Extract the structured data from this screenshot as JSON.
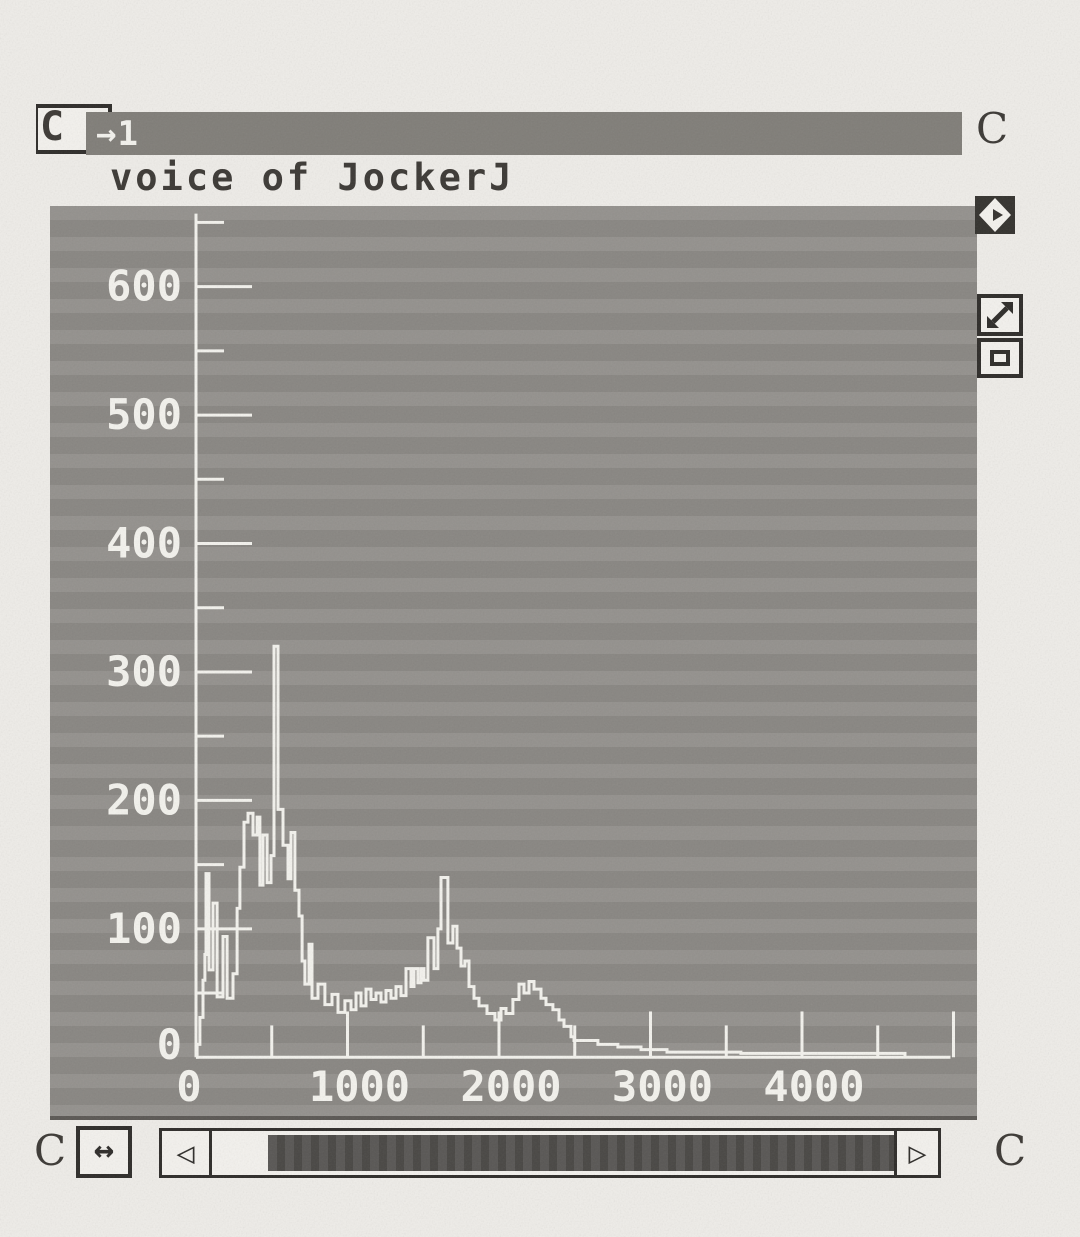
{
  "window": {
    "close_box_label": "C",
    "title_bar_text": "→1",
    "subtitle": "voice of JockerJ",
    "corner_marks": {
      "top_right": "C",
      "bottom_left": "C",
      "bottom_right": "C"
    },
    "icons": {
      "diamond": "window-diamond",
      "resize": "diagonal-resize",
      "restore": "size-box"
    },
    "scrollbar": {
      "h_resize_label": "↔",
      "left_arrow": "◁",
      "right_arrow": "▷"
    }
  },
  "colors": {
    "paper": "#efede9",
    "panel": "#8f8c88",
    "titlebar": "#817e79",
    "dark": "#2e2c29",
    "trace": "#f4f3ee",
    "track": "#4f4d4a",
    "textdark": "#3c3935"
  },
  "chart_data": {
    "type": "line",
    "title": "voice of Jocker",
    "xlabel": "",
    "ylabel": "",
    "xlim": [
      0,
      5100
    ],
    "ylim": [
      0,
      660
    ],
    "x_tick_labels": [
      0,
      1000,
      2000,
      3000,
      4000
    ],
    "x_minor_step": 500,
    "y_tick_labels": [
      0,
      100,
      200,
      300,
      400,
      500,
      600
    ],
    "y_minor_step": 50,
    "grid": false,
    "legend": false,
    "style": "step-after histogram trace, white on gray",
    "series": [
      [
        0,
        0
      ],
      [
        7,
        10
      ],
      [
        26,
        31
      ],
      [
        46,
        60
      ],
      [
        59,
        80
      ],
      [
        66,
        143
      ],
      [
        86,
        68
      ],
      [
        112,
        120
      ],
      [
        139,
        47
      ],
      [
        178,
        94
      ],
      [
        205,
        46
      ],
      [
        244,
        65
      ],
      [
        271,
        116
      ],
      [
        290,
        148
      ],
      [
        317,
        183
      ],
      [
        343,
        190
      ],
      [
        376,
        173
      ],
      [
        403,
        187
      ],
      [
        422,
        134
      ],
      [
        442,
        173
      ],
      [
        469,
        136
      ],
      [
        495,
        157
      ],
      [
        515,
        320
      ],
      [
        541,
        193
      ],
      [
        574,
        165
      ],
      [
        607,
        139
      ],
      [
        627,
        175
      ],
      [
        653,
        130
      ],
      [
        680,
        110
      ],
      [
        700,
        75
      ],
      [
        719,
        57
      ],
      [
        746,
        88
      ],
      [
        766,
        46
      ],
      [
        805,
        57
      ],
      [
        851,
        41
      ],
      [
        898,
        49
      ],
      [
        937,
        35
      ],
      [
        983,
        44
      ],
      [
        1023,
        37
      ],
      [
        1056,
        50
      ],
      [
        1089,
        40
      ],
      [
        1122,
        53
      ],
      [
        1155,
        45
      ],
      [
        1188,
        50
      ],
      [
        1221,
        43
      ],
      [
        1254,
        52
      ],
      [
        1287,
        46
      ],
      [
        1320,
        55
      ],
      [
        1353,
        48
      ],
      [
        1386,
        69
      ],
      [
        1419,
        55
      ],
      [
        1439,
        69
      ],
      [
        1465,
        58
      ],
      [
        1485,
        69
      ],
      [
        1505,
        60
      ],
      [
        1531,
        93
      ],
      [
        1571,
        69
      ],
      [
        1597,
        100
      ],
      [
        1617,
        140
      ],
      [
        1663,
        89
      ],
      [
        1696,
        102
      ],
      [
        1723,
        85
      ],
      [
        1749,
        71
      ],
      [
        1775,
        75
      ],
      [
        1802,
        55
      ],
      [
        1835,
        46
      ],
      [
        1868,
        40
      ],
      [
        1921,
        34
      ],
      [
        1973,
        29
      ],
      [
        2013,
        38
      ],
      [
        2046,
        34
      ],
      [
        2092,
        45
      ],
      [
        2132,
        57
      ],
      [
        2165,
        50
      ],
      [
        2198,
        59
      ],
      [
        2231,
        53
      ],
      [
        2277,
        46
      ],
      [
        2310,
        41
      ],
      [
        2356,
        37
      ],
      [
        2396,
        29
      ],
      [
        2429,
        24
      ],
      [
        2475,
        16
      ],
      [
        2495,
        13
      ],
      [
        2653,
        10
      ],
      [
        2785,
        8
      ],
      [
        2937,
        6
      ],
      [
        3109,
        4
      ],
      [
        3597,
        3
      ],
      [
        4680,
        0
      ]
    ]
  }
}
